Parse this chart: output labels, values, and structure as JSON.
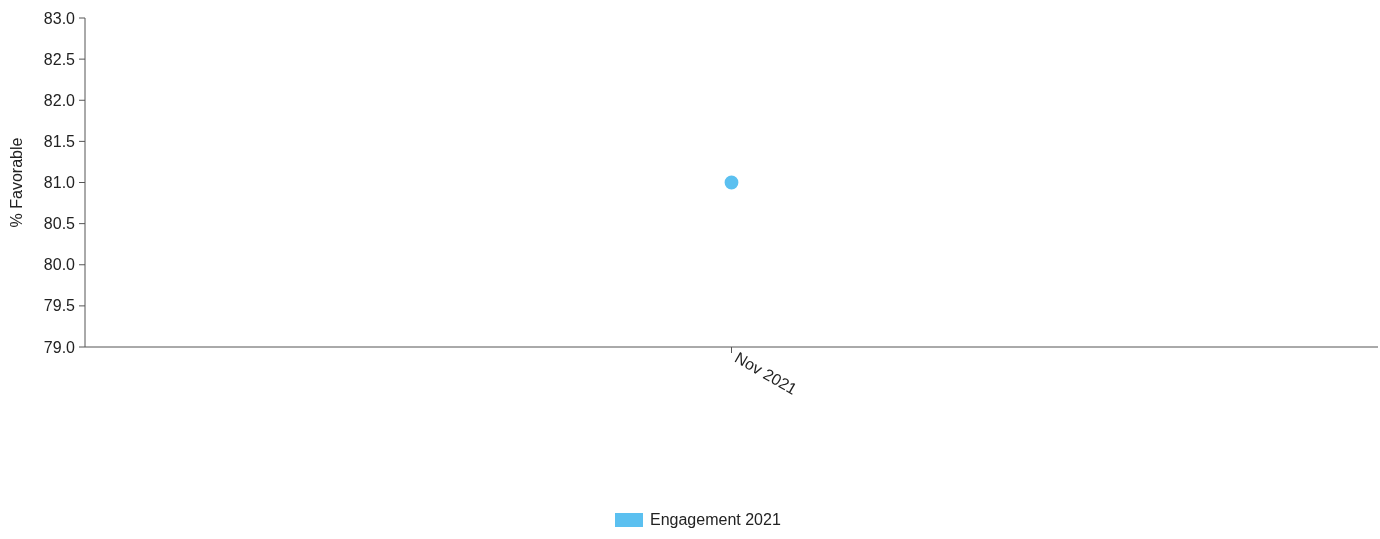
{
  "chart_data": {
    "type": "line",
    "ylabel": "% Favorable",
    "categories": [
      "Nov 2021"
    ],
    "series": [
      {
        "name": "Engagement 2021",
        "color": "#5bc0f0",
        "values": [
          81.0
        ]
      }
    ],
    "ylim": [
      79,
      83
    ],
    "yticks": [
      {
        "value": 79,
        "label": "79.0"
      },
      {
        "value": 79.5,
        "label": "79.5"
      },
      {
        "value": 80,
        "label": "80.0"
      },
      {
        "value": 80.5,
        "label": "80.5"
      },
      {
        "value": 81,
        "label": "81.0"
      },
      {
        "value": 81.5,
        "label": "81.5"
      },
      {
        "value": 82,
        "label": "82.0"
      },
      {
        "value": 82.5,
        "label": "82.5"
      },
      {
        "value": 83,
        "label": "83.0"
      }
    ],
    "marker": "circle",
    "legend": "bottom"
  }
}
